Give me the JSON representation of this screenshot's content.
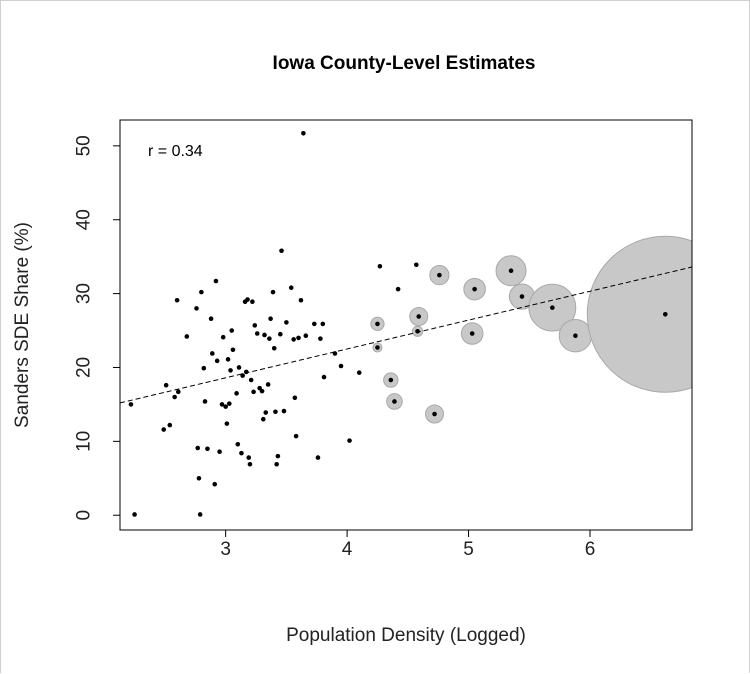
{
  "chart_data": {
    "type": "scatter",
    "title": "Iowa County-Level Estimates",
    "xlabel": "Population Density (Logged)",
    "ylabel": "Sanders SDE Share (%)",
    "annotation": "r = 0.34",
    "xlim": [
      2.13,
      6.84
    ],
    "ylim": [
      -2.0,
      53.5
    ],
    "x_ticks": [
      3,
      4,
      5,
      6
    ],
    "y_ticks": [
      0,
      10,
      20,
      30,
      40,
      50
    ],
    "grid": false,
    "legend": "none",
    "point_color": "#000000",
    "bubble_color": "#c8c8c8",
    "trend_line": {
      "style": "dashed",
      "x": [
        2.13,
        6.84
      ],
      "y": [
        15.2,
        33.6
      ]
    },
    "points": [
      {
        "x": 2.22,
        "y": 15.0
      },
      {
        "x": 2.25,
        "y": 0.1
      },
      {
        "x": 2.49,
        "y": 11.6
      },
      {
        "x": 2.51,
        "y": 17.6
      },
      {
        "x": 2.54,
        "y": 12.2
      },
      {
        "x": 2.58,
        "y": 16.0
      },
      {
        "x": 2.6,
        "y": 29.1
      },
      {
        "x": 2.61,
        "y": 16.7
      },
      {
        "x": 2.68,
        "y": 24.2
      },
      {
        "x": 2.76,
        "y": 28.0
      },
      {
        "x": 2.77,
        "y": 9.1
      },
      {
        "x": 2.78,
        "y": 5.0
      },
      {
        "x": 2.79,
        "y": 0.1
      },
      {
        "x": 2.8,
        "y": 30.2
      },
      {
        "x": 2.82,
        "y": 19.9
      },
      {
        "x": 2.83,
        "y": 15.4
      },
      {
        "x": 2.85,
        "y": 9.0
      },
      {
        "x": 2.88,
        "y": 26.6
      },
      {
        "x": 2.89,
        "y": 21.9
      },
      {
        "x": 2.91,
        "y": 4.2
      },
      {
        "x": 2.92,
        "y": 31.7
      },
      {
        "x": 2.93,
        "y": 20.9
      },
      {
        "x": 2.95,
        "y": 8.6
      },
      {
        "x": 2.97,
        "y": 15.0
      },
      {
        "x": 2.98,
        "y": 24.1
      },
      {
        "x": 3.0,
        "y": 14.7
      },
      {
        "x": 3.01,
        "y": 12.4
      },
      {
        "x": 3.02,
        "y": 21.1
      },
      {
        "x": 3.03,
        "y": 15.1
      },
      {
        "x": 3.04,
        "y": 19.6
      },
      {
        "x": 3.05,
        "y": 25.0
      },
      {
        "x": 3.06,
        "y": 22.4
      },
      {
        "x": 3.09,
        "y": 16.5
      },
      {
        "x": 3.1,
        "y": 9.6
      },
      {
        "x": 3.11,
        "y": 20.0
      },
      {
        "x": 3.13,
        "y": 8.4
      },
      {
        "x": 3.14,
        "y": 18.9
      },
      {
        "x": 3.16,
        "y": 28.9
      },
      {
        "x": 3.17,
        "y": 19.4
      },
      {
        "x": 3.18,
        "y": 29.2
      },
      {
        "x": 3.19,
        "y": 7.8
      },
      {
        "x": 3.2,
        "y": 6.9
      },
      {
        "x": 3.21,
        "y": 18.3
      },
      {
        "x": 3.22,
        "y": 28.9
      },
      {
        "x": 3.23,
        "y": 16.7
      },
      {
        "x": 3.24,
        "y": 25.7
      },
      {
        "x": 3.26,
        "y": 24.6
      },
      {
        "x": 3.28,
        "y": 17.2
      },
      {
        "x": 3.3,
        "y": 16.8
      },
      {
        "x": 3.31,
        "y": 13.0
      },
      {
        "x": 3.32,
        "y": 24.4
      },
      {
        "x": 3.33,
        "y": 13.9
      },
      {
        "x": 3.35,
        "y": 17.7
      },
      {
        "x": 3.36,
        "y": 23.9
      },
      {
        "x": 3.37,
        "y": 26.6
      },
      {
        "x": 3.39,
        "y": 30.2
      },
      {
        "x": 3.4,
        "y": 22.6
      },
      {
        "x": 3.41,
        "y": 14.0
      },
      {
        "x": 3.42,
        "y": 6.9
      },
      {
        "x": 3.43,
        "y": 8.0
      },
      {
        "x": 3.45,
        "y": 24.5
      },
      {
        "x": 3.46,
        "y": 35.8
      },
      {
        "x": 3.48,
        "y": 14.1
      },
      {
        "x": 3.5,
        "y": 26.1
      },
      {
        "x": 3.54,
        "y": 30.8
      },
      {
        "x": 3.56,
        "y": 23.8
      },
      {
        "x": 3.57,
        "y": 15.9
      },
      {
        "x": 3.58,
        "y": 10.7
      },
      {
        "x": 3.6,
        "y": 24.0
      },
      {
        "x": 3.62,
        "y": 29.1
      },
      {
        "x": 3.64,
        "y": 51.7
      },
      {
        "x": 3.66,
        "y": 24.3
      },
      {
        "x": 3.73,
        "y": 25.9
      },
      {
        "x": 3.76,
        "y": 7.8
      },
      {
        "x": 3.78,
        "y": 23.9
      },
      {
        "x": 3.8,
        "y": 25.9
      },
      {
        "x": 3.81,
        "y": 18.7
      },
      {
        "x": 3.9,
        "y": 21.9
      },
      {
        "x": 3.95,
        "y": 20.2
      },
      {
        "x": 4.02,
        "y": 10.1
      },
      {
        "x": 4.1,
        "y": 19.3
      },
      {
        "x": 4.27,
        "y": 33.7
      },
      {
        "x": 4.42,
        "y": 30.6
      },
      {
        "x": 4.57,
        "y": 33.9
      }
    ],
    "bubbles": [
      {
        "x": 4.25,
        "y": 22.7,
        "size": 0.25
      },
      {
        "x": 4.25,
        "y": 25.9,
        "size": 0.6
      },
      {
        "x": 4.36,
        "y": 18.3,
        "size": 0.7
      },
      {
        "x": 4.39,
        "y": 15.4,
        "size": 0.8
      },
      {
        "x": 4.58,
        "y": 24.9,
        "size": 0.35
      },
      {
        "x": 4.59,
        "y": 26.9,
        "size": 1.0
      },
      {
        "x": 4.72,
        "y": 13.7,
        "size": 1.0
      },
      {
        "x": 4.76,
        "y": 32.5,
        "size": 1.1
      },
      {
        "x": 5.03,
        "y": 24.6,
        "size": 1.3
      },
      {
        "x": 5.05,
        "y": 30.6,
        "size": 1.3
      },
      {
        "x": 5.35,
        "y": 33.1,
        "size": 2.0
      },
      {
        "x": 5.44,
        "y": 29.6,
        "size": 1.6
      },
      {
        "x": 5.69,
        "y": 28.1,
        "size": 3.4
      },
      {
        "x": 5.88,
        "y": 24.3,
        "size": 2.2
      },
      {
        "x": 6.62,
        "y": 27.2,
        "size": 12.5
      }
    ]
  }
}
